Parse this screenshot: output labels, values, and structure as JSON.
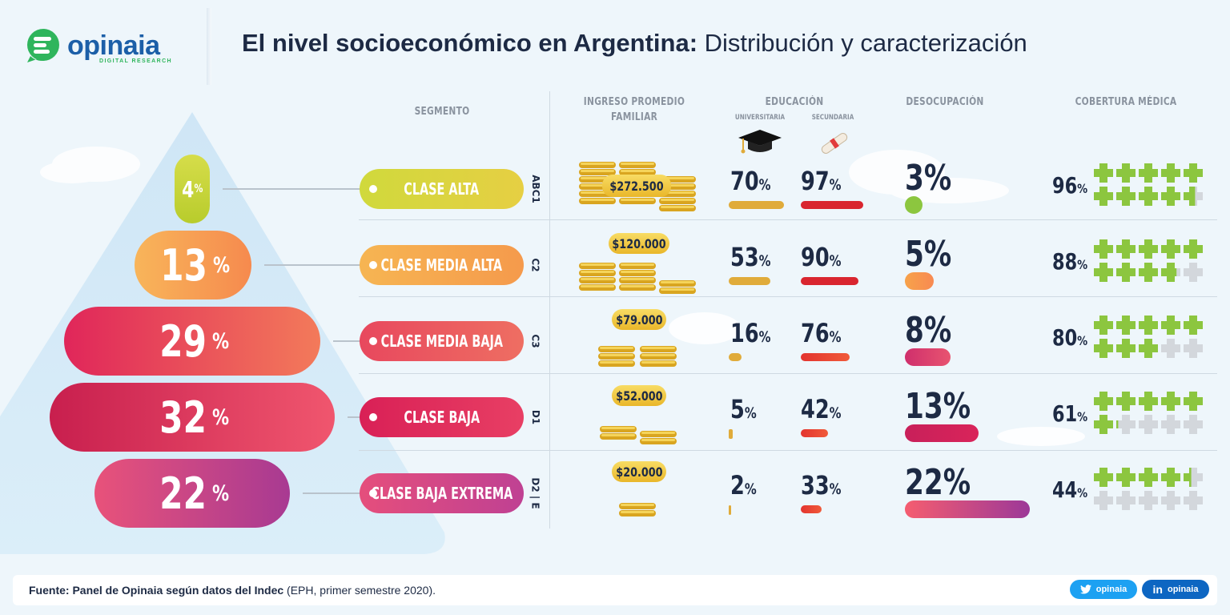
{
  "header": {
    "brand": "opinaia",
    "brand_sub": "DIGITAL RESEARCH",
    "title_bold": "El nivel socioeconómico en Argentina:",
    "title_rest": " Distribución y caracterización"
  },
  "columns": {
    "segmento": "SEGMENTO",
    "ingreso_1": "INGRESO PROMEDIO",
    "ingreso_2": "FAMILIAR",
    "educacion": "EDUCACIÓN",
    "universitaria": "UNIVERSITARIA",
    "secundaria": "SECUNDARIA",
    "desocupacion": "DESOCUPACIÓN",
    "cobertura": "COBERTURA MÉDICA"
  },
  "chart_data": {
    "type": "table",
    "title": "El nivel socioeconómico en Argentina: Distribución y caracterización",
    "rows": [
      {
        "segment": "CLASE ALTA",
        "code": "ABC1",
        "share": 4,
        "share_label": "4",
        "income": "$272.500",
        "universitaria": 70,
        "universitaria_label": "70",
        "secundaria": 97,
        "secundaria_label": "97",
        "desocupacion": 3,
        "desocupacion_label": "3%",
        "cobertura": 96,
        "cobertura_label": "96"
      },
      {
        "segment": "CLASE MEDIA ALTA",
        "code": "C2",
        "share": 13,
        "share_label": "13",
        "income": "$120.000",
        "universitaria": 53,
        "universitaria_label": "53",
        "secundaria": 90,
        "secundaria_label": "90",
        "desocupacion": 5,
        "desocupacion_label": "5%",
        "cobertura": 88,
        "cobertura_label": "88"
      },
      {
        "segment": "CLASE MEDIA BAJA",
        "code": "C3",
        "share": 29,
        "share_label": "29",
        "income": "$79.000",
        "universitaria": 16,
        "universitaria_label": "16",
        "secundaria": 76,
        "secundaria_label": "76",
        "desocupacion": 8,
        "desocupacion_label": "8%",
        "cobertura": 80,
        "cobertura_label": "80"
      },
      {
        "segment": "CLASE BAJA",
        "code": "D1",
        "share": 32,
        "share_label": "32",
        "income": "$52.000",
        "universitaria": 5,
        "universitaria_label": "5",
        "secundaria": 42,
        "secundaria_label": "42",
        "desocupacion": 13,
        "desocupacion_label": "13%",
        "cobertura": 61,
        "cobertura_label": "61"
      },
      {
        "segment": "CLASE BAJA EXTREMA",
        "code": "D2 | E",
        "share": 22,
        "share_label": "22",
        "income": "$20.000",
        "universitaria": 2,
        "universitaria_label": "2",
        "secundaria": 33,
        "secundaria_label": "33",
        "desocupacion": 22,
        "desocupacion_label": "22%",
        "cobertura": 44,
        "cobertura_label": "44"
      }
    ]
  },
  "colors": {
    "row_colors": [
      "#c9d63a",
      "#f7a24a",
      "#e64f62",
      "#d8245a",
      "#b33a8e"
    ],
    "uni_bar": "#e0ab3a",
    "sec_bar": "#d9252f",
    "cross_on": "#8cc63f",
    "cross_off": "#d3d7dc"
  },
  "pct_sign": "%",
  "footer": {
    "source_bold": "Fuente: Panel de Opinaia según datos del Indec",
    "source_rest": " (EPH, primer semestre 2020).",
    "twitter": "opinaia",
    "linkedin": "opinaia"
  }
}
